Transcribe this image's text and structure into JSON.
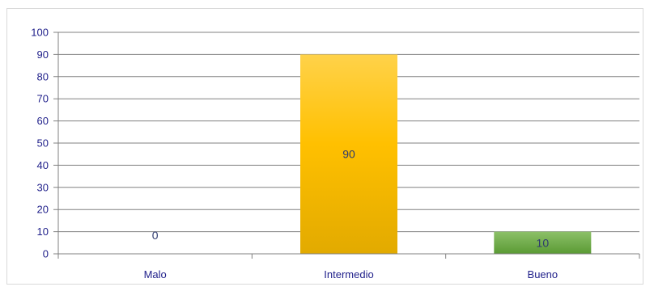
{
  "chart_data": {
    "type": "bar",
    "title": "",
    "xlabel": "",
    "ylabel": "",
    "categories": [
      "Malo",
      "Intermedio",
      "Bueno"
    ],
    "values": [
      0,
      90,
      10
    ],
    "data_labels": [
      "0",
      "90",
      "10"
    ],
    "ylim": [
      0,
      100
    ],
    "yticks": [
      0,
      10,
      20,
      30,
      40,
      50,
      60,
      70,
      80,
      90,
      100
    ],
    "grid": true,
    "legend": "none",
    "colors": {
      "Malo": "#4472c4",
      "Intermedio_top": "#ffd24a",
      "Intermedio_mid": "#ffc000",
      "Intermedio_bottom": "#e2aa00",
      "Bueno_top": "#8cc068",
      "Bueno_bottom": "#5a9a34",
      "gridline": "#808080",
      "axis_text": "#1f1f8a"
    }
  }
}
